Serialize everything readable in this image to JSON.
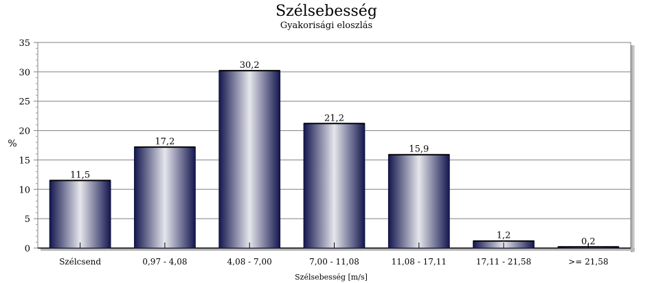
{
  "chart_data": {
    "type": "bar",
    "title": "Szélsebesség",
    "subtitle": "Gyakorisági eloszlás",
    "xlabel": "Szélsebesség [m/s]",
    "ylabel": "%",
    "categories": [
      "Szélcsend",
      "0,97 - 4,08",
      "4,08 - 7,00",
      "7,00 - 11,08",
      "11,08 - 17,11",
      "17,11 - 21,58",
      ">= 21,58"
    ],
    "values": [
      11.5,
      17.2,
      30.2,
      21.2,
      15.9,
      1.2,
      0.2
    ],
    "value_labels": [
      "11,5",
      "17,2",
      "30,2",
      "21,2",
      "15,9",
      "1,2",
      "0,2"
    ],
    "yticks": [
      0,
      5,
      10,
      15,
      20,
      25,
      30,
      35
    ],
    "ylim": [
      0,
      35
    ],
    "grid": true,
    "legend": "none",
    "colors": {
      "bar_dark": "#14174f",
      "bar_light": "#e6e6ec",
      "grid": "#7f7f7f"
    }
  }
}
